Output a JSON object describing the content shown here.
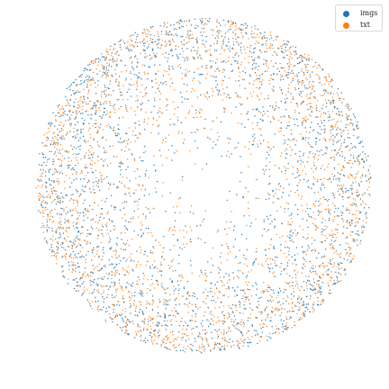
{
  "chart_data": {
    "type": "scatter",
    "title": "",
    "xlabel": "",
    "ylabel": "",
    "axes_visible": false,
    "grid": false,
    "xlim": [
      -1.05,
      1.05
    ],
    "ylim": [
      -1.05,
      1.05
    ],
    "shape": "points distributed inside the unit disk, denser toward the rim",
    "approx_points_per_series": 2400,
    "legend": {
      "position": "top-right"
    },
    "series": [
      {
        "name": "imgs",
        "color": "#1f77b4"
      },
      {
        "name": "txt",
        "color": "#ff7f0e"
      }
    ]
  }
}
